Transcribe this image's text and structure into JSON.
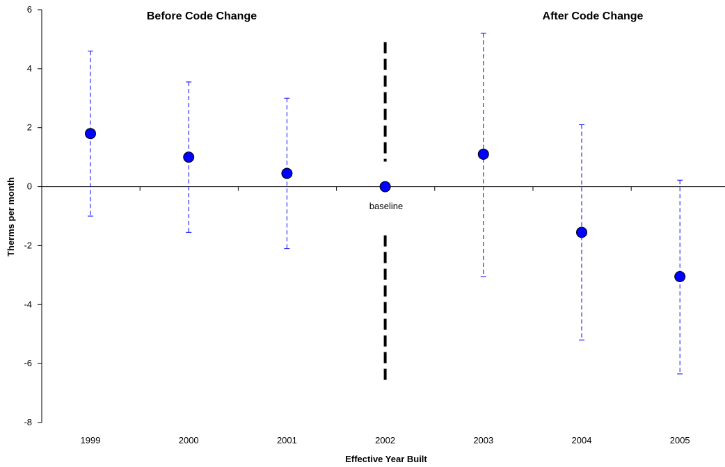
{
  "chart_data": {
    "type": "scatter",
    "xlabel": "Effective Year Built",
    "ylabel": "Therms per month",
    "ylim": [
      -8,
      6
    ],
    "yticks": [
      "6",
      "4",
      "2",
      "0",
      "-2",
      "-4",
      "-6",
      "-8"
    ],
    "categories": [
      "1999",
      "2000",
      "2001",
      "2002",
      "2003",
      "2004",
      "2005"
    ],
    "points": [
      {
        "x": "1999",
        "y": 1.8,
        "low": -1.0,
        "high": 4.6
      },
      {
        "x": "2000",
        "y": 1.0,
        "low": -1.55,
        "high": 3.55
      },
      {
        "x": "2001",
        "y": 0.45,
        "low": -2.1,
        "high": 3.0
      },
      {
        "x": "2002",
        "y": 0.0,
        "low": null,
        "high": null
      },
      {
        "x": "2003",
        "y": 1.1,
        "low": -3.05,
        "high": 5.2
      },
      {
        "x": "2004",
        "y": -1.55,
        "low": -5.2,
        "high": 2.1
      },
      {
        "x": "2005",
        "y": -3.05,
        "low": -6.35,
        "high": 0.22
      }
    ],
    "annotations": {
      "before": "Before Code Change",
      "after": "After Code Change",
      "baseline": "baseline"
    },
    "divider_x": "2002",
    "colors": {
      "marker": "#0000ff",
      "errorbar": "#0000ff",
      "divider": "#000000"
    },
    "grid": false
  }
}
